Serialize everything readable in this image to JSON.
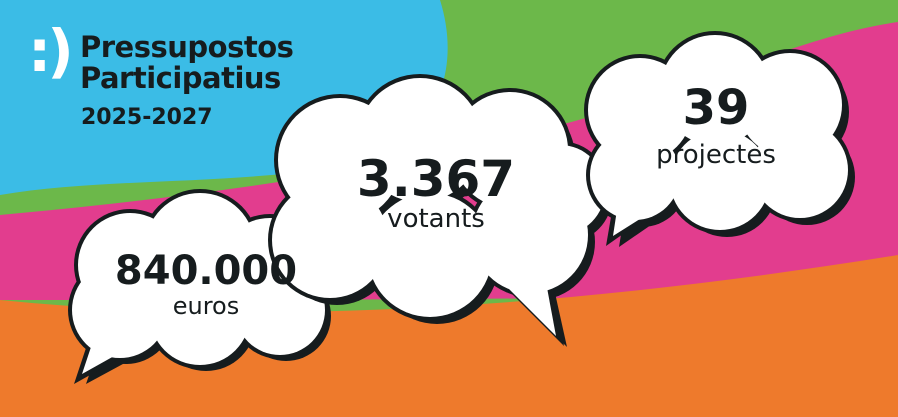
{
  "colors": {
    "blue": "#3bbce6",
    "green": "#6cb84a",
    "pink": "#e23d8e",
    "orange": "#ee7a2c",
    "ink": "#161c1e"
  },
  "logo": {
    "icon": "smiley-icon",
    "glyph": ":)",
    "title_line1": "Pressupostos",
    "title_line2": "Participatius",
    "years": "2025-2027"
  },
  "stats": [
    {
      "value": "840.000",
      "label": "euros"
    },
    {
      "value": "3.367",
      "label": "votants"
    },
    {
      "value": "39",
      "label": "projectes"
    }
  ]
}
